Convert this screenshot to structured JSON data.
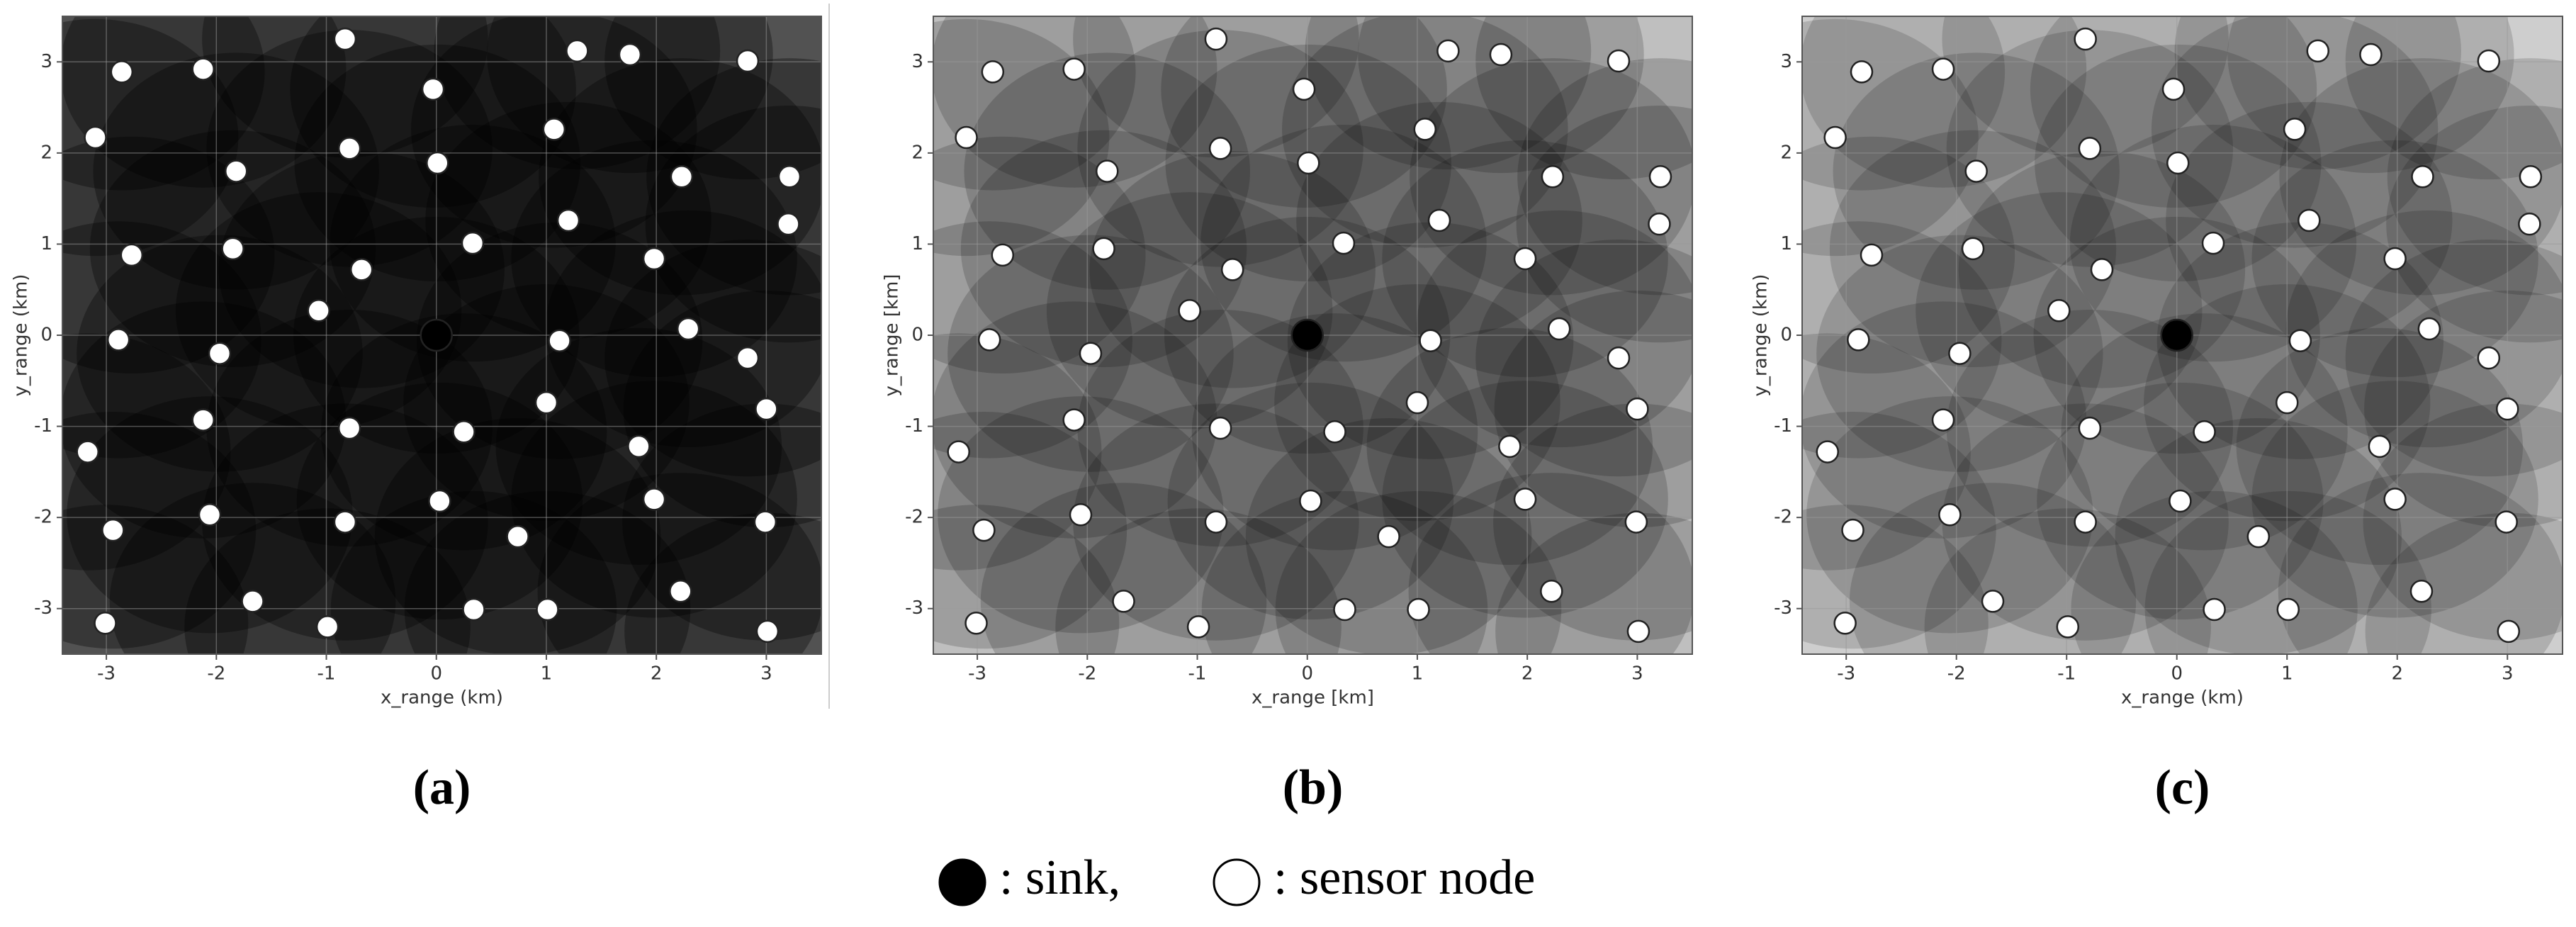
{
  "chart_data": [
    {
      "type": "scatter",
      "panel_label": "(a)",
      "x_label": "x_range (km)",
      "y_label": "y_range (km)",
      "xlim": [
        -3.4,
        3.5
      ],
      "ylim": [
        -3.5,
        3.5
      ],
      "xticks": [
        -3,
        -2,
        -1,
        0,
        1,
        2,
        3
      ],
      "yticks": [
        -3,
        -2,
        -1,
        0,
        1,
        2,
        3
      ],
      "grid": true,
      "series": [
        {
          "name": "sink",
          "color": "#000000",
          "x": [
            0
          ],
          "y": [
            0
          ]
        },
        {
          "name": "sensor node",
          "color": "#ffffff",
          "x": [
            -0.83,
            -2.86,
            -2.12,
            -0.03,
            1.28,
            1.76,
            2.83,
            -3.1,
            -1.82,
            -0.79,
            0.01,
            1.07,
            2.23,
            3.21,
            -2.77,
            -1.85,
            -0.68,
            0.33,
            1.2,
            1.98,
            3.2,
            -1.07,
            -2.89,
            -1.97,
            1.12,
            2.29,
            2.83,
            3.0,
            1.0,
            -2.12,
            -0.79,
            0.25,
            1.84,
            -3.17,
            -2.94,
            -2.06,
            -0.83,
            0.03,
            0.74,
            1.98,
            2.99,
            -1.67,
            -0.99,
            0.34,
            1.01,
            2.22,
            -3.01,
            3.01
          ],
          "y": [
            3.25,
            2.89,
            2.92,
            2.7,
            3.12,
            3.08,
            3.01,
            2.17,
            1.8,
            2.05,
            1.89,
            2.26,
            1.74,
            1.74,
            0.88,
            0.95,
            0.72,
            1.01,
            1.26,
            0.84,
            1.22,
            0.27,
            -0.05,
            -0.2,
            -0.06,
            0.07,
            -0.25,
            -0.81,
            -0.74,
            -0.93,
            -1.02,
            -1.06,
            -1.22,
            -1.28,
            -2.14,
            -1.97,
            -2.05,
            -1.82,
            -2.21,
            -1.8,
            -2.05,
            -2.92,
            -3.2,
            -3.01,
            -3.01,
            -2.81,
            -3.16,
            -3.25
          ]
        }
      ]
    },
    {
      "type": "scatter",
      "panel_label": "(b)",
      "x_label": "x_range [km]",
      "y_label": "y_range [km]",
      "xlim": [
        -3.4,
        3.5
      ],
      "ylim": [
        -3.5,
        3.5
      ],
      "xticks": [
        -3,
        -2,
        -1,
        0,
        1,
        2,
        3
      ],
      "yticks": [
        -3,
        -2,
        -1,
        0,
        1,
        2,
        3
      ],
      "grid": true,
      "series": [
        {
          "name": "sink",
          "color": "#000000",
          "x": [
            0
          ],
          "y": [
            0
          ]
        },
        {
          "name": "sensor node",
          "color": "#ffffff",
          "x": [
            -0.83,
            -2.86,
            -2.12,
            -0.03,
            1.28,
            1.76,
            2.83,
            -3.1,
            -1.82,
            -0.79,
            0.01,
            1.07,
            2.23,
            3.21,
            -2.77,
            -1.85,
            -0.68,
            0.33,
            1.2,
            1.98,
            3.2,
            -1.07,
            -2.89,
            -1.97,
            1.12,
            2.29,
            2.83,
            3.0,
            1.0,
            -2.12,
            -0.79,
            0.25,
            1.84,
            -3.17,
            -2.94,
            -2.06,
            -0.83,
            0.03,
            0.74,
            1.98,
            2.99,
            -1.67,
            -0.99,
            0.34,
            1.01,
            2.22,
            -3.01,
            3.01
          ],
          "y": [
            3.25,
            2.89,
            2.92,
            2.7,
            3.12,
            3.08,
            3.01,
            2.17,
            1.8,
            2.05,
            1.89,
            2.26,
            1.74,
            1.74,
            0.88,
            0.95,
            0.72,
            1.01,
            1.26,
            0.84,
            1.22,
            0.27,
            -0.05,
            -0.2,
            -0.06,
            0.07,
            -0.25,
            -0.81,
            -0.74,
            -0.93,
            -1.02,
            -1.06,
            -1.22,
            -1.28,
            -2.14,
            -1.97,
            -2.05,
            -1.82,
            -2.21,
            -1.8,
            -2.05,
            -2.92,
            -3.2,
            -3.01,
            -3.01,
            -2.81,
            -3.16,
            -3.25
          ]
        }
      ]
    },
    {
      "type": "scatter",
      "panel_label": "(c)",
      "x_label": "x_range (km)",
      "y_label": "y_range (km)",
      "xlim": [
        -3.4,
        3.5
      ],
      "ylim": [
        -3.5,
        3.5
      ],
      "xticks": [
        -3,
        -2,
        -1,
        0,
        1,
        2,
        3
      ],
      "yticks": [
        -3,
        -2,
        -1,
        0,
        1,
        2,
        3
      ],
      "grid": true,
      "series": [
        {
          "name": "sink",
          "color": "#000000",
          "x": [
            0
          ],
          "y": [
            0
          ]
        },
        {
          "name": "sensor node",
          "color": "#ffffff",
          "x": [
            -0.83,
            -2.86,
            -2.12,
            -0.03,
            1.28,
            1.76,
            2.83,
            -3.1,
            -1.82,
            -0.79,
            0.01,
            1.07,
            2.23,
            3.21,
            -2.77,
            -1.85,
            -0.68,
            0.33,
            1.2,
            1.98,
            3.2,
            -1.07,
            -2.89,
            -1.97,
            1.12,
            2.29,
            2.83,
            3.0,
            1.0,
            -2.12,
            -0.79,
            0.25,
            1.84,
            -3.17,
            -2.94,
            -2.06,
            -0.83,
            0.03,
            0.74,
            1.98,
            2.99,
            -1.67,
            -0.99,
            0.34,
            1.01,
            2.22,
            -3.01,
            3.01
          ],
          "y": [
            3.25,
            2.89,
            2.92,
            2.7,
            3.12,
            3.08,
            3.01,
            2.17,
            1.8,
            2.05,
            1.89,
            2.26,
            1.74,
            1.74,
            0.88,
            0.95,
            0.72,
            1.01,
            1.26,
            0.84,
            1.22,
            0.27,
            -0.05,
            -0.2,
            -0.06,
            0.07,
            -0.25,
            -0.81,
            -0.74,
            -0.93,
            -1.02,
            -1.06,
            -1.22,
            -1.28,
            -2.14,
            -1.97,
            -2.05,
            -1.82,
            -2.21,
            -1.8,
            -2.05,
            -2.92,
            -3.2,
            -3.01,
            -3.01,
            -2.81,
            -3.16,
            -3.25
          ]
        }
      ]
    }
  ],
  "legend": [
    {
      "label": ": sink,",
      "color": "#000000"
    },
    {
      "label": ": sensor node",
      "color": "#ffffff"
    }
  ]
}
